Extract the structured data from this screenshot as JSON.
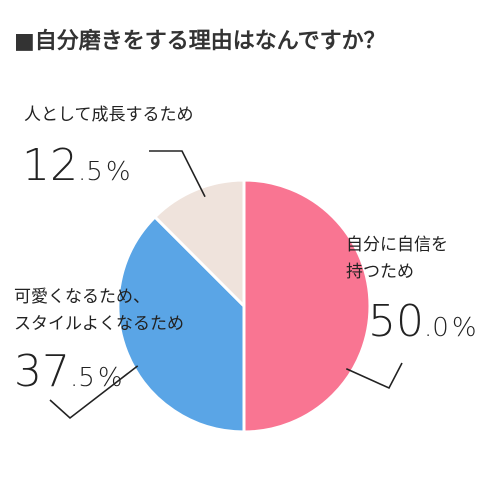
{
  "chart_data": {
    "type": "pie",
    "title": "■自分磨きをする理由はなんですか？",
    "slices": [
      {
        "label_lines": [
          "自分に自信を",
          "持つため"
        ],
        "value": 50.0,
        "value_int": "50",
        "value_dec": ".0",
        "unit": "%",
        "color": "#f97592"
      },
      {
        "label_lines": [
          "可愛くなるため、",
          "スタイルよくなるため"
        ],
        "value": 37.5,
        "value_int": "37",
        "value_dec": ".5",
        "unit": "%",
        "color": "#5aa5e6"
      },
      {
        "label_lines": [
          "人として成長するため"
        ],
        "value": 12.5,
        "value_int": "12",
        "value_dec": ".5",
        "unit": "%",
        "color": "#efe3dc"
      }
    ],
    "start_angle_deg": 0,
    "direction": "clockwise",
    "stroke_color": "#ffffff",
    "leader_color": "#222222"
  }
}
